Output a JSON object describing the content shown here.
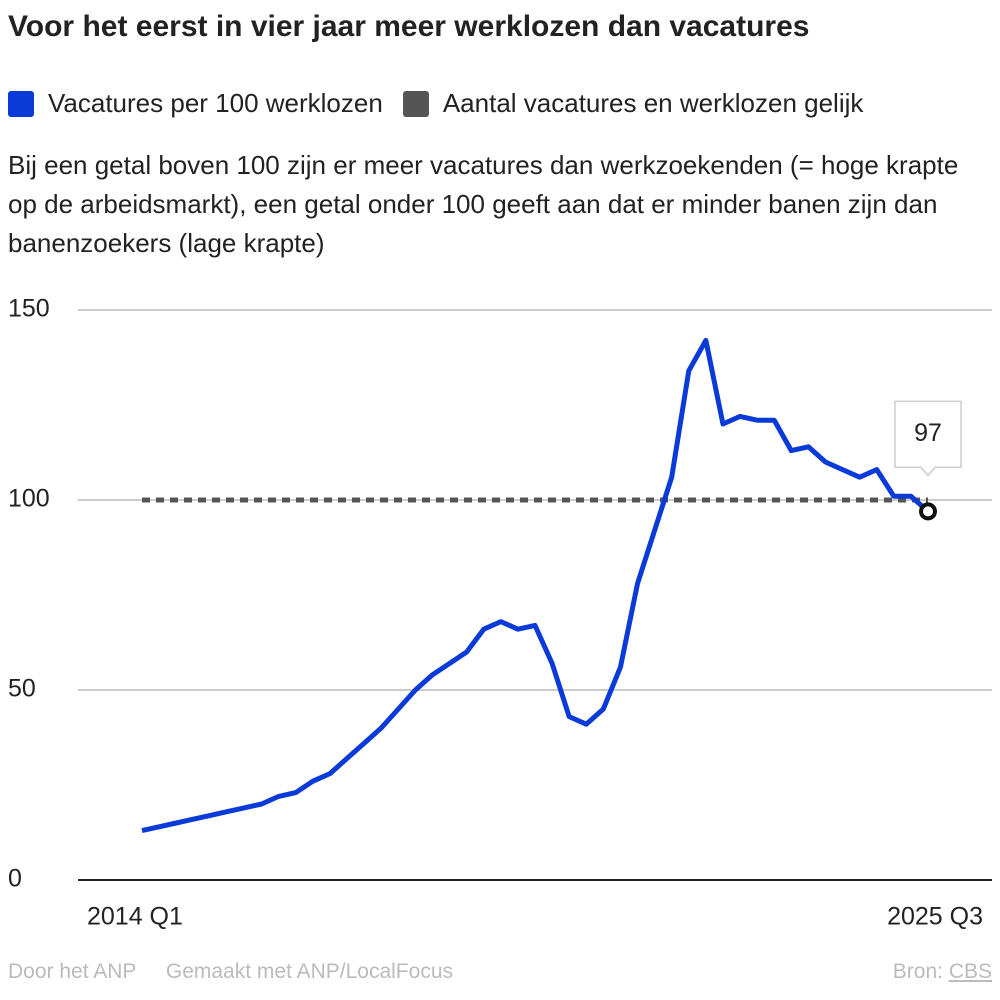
{
  "chart_data": {
    "type": "line",
    "title": "Voor het eerst in vier jaar meer werklozen dan vacatures",
    "subtitle": "Bij een getal boven 100 zijn er meer vacatures dan werkzoekenden (= hoge krapte op de arbeidsmarkt), een getal onder 100 geeft aan dat er minder banen zijn dan banenzoekers (lage krapte)",
    "categories": [
      "2014 Q1",
      null,
      null,
      null,
      null,
      null,
      null,
      null,
      null,
      null,
      null,
      null,
      null,
      null,
      null,
      null,
      null,
      null,
      null,
      null,
      null,
      null,
      null,
      null,
      null,
      null,
      null,
      null,
      null,
      null,
      null,
      null,
      null,
      null,
      null,
      null,
      null,
      null,
      null,
      null,
      null,
      null,
      null,
      null,
      null,
      null,
      "2025 Q3"
    ],
    "series": [
      {
        "name": "Vacatures per 100 werklozen",
        "color": "#0a3bd8",
        "line_style": "solid",
        "values": [
          13,
          14,
          15,
          16,
          17,
          18,
          19,
          20,
          22,
          23,
          26,
          28,
          32,
          36,
          40,
          45,
          50,
          54,
          57,
          60,
          66,
          68,
          66,
          67,
          57,
          43,
          41,
          45,
          56,
          78,
          92,
          106,
          134,
          142,
          120,
          122,
          121,
          121,
          113,
          114,
          110,
          108,
          106,
          108,
          101,
          101,
          97
        ]
      },
      {
        "name": "Aantal vacatures en werklozen gelijk",
        "color": "#555555",
        "line_style": "dotted",
        "values": [
          100,
          100,
          100,
          100,
          100,
          100,
          100,
          100,
          100,
          100,
          100,
          100,
          100,
          100,
          100,
          100,
          100,
          100,
          100,
          100,
          100,
          100,
          100,
          100,
          100,
          100,
          100,
          100,
          100,
          100,
          100,
          100,
          100,
          100,
          100,
          100,
          100,
          100,
          100,
          100,
          100,
          100,
          100,
          100,
          100,
          100,
          100
        ]
      }
    ],
    "ylim": [
      0,
      150
    ],
    "yticks": [
      0,
      50,
      100,
      150
    ],
    "grid": true,
    "footer": {
      "credit": "Door het ANP",
      "made_with": "Gemaakt met ANP/LocalFocus",
      "source_label": "Bron:",
      "source": "CBS"
    }
  }
}
